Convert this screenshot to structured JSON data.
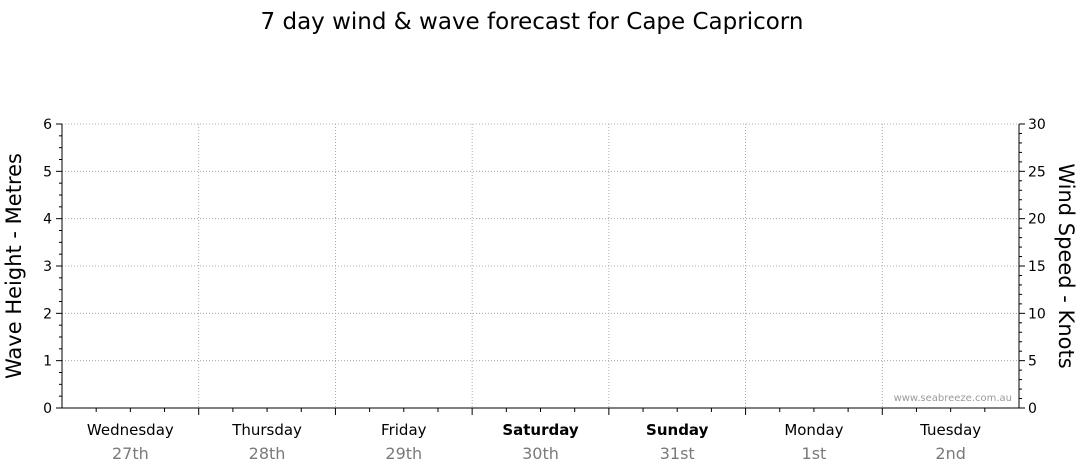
{
  "chart_data": {
    "type": "line",
    "title": "7 day wind & wave forecast for Cape Capricorn",
    "ylabel_left": "Wave Height - Metres",
    "ylabel_right": "Wind Speed - Knots",
    "ylim_left": [
      0,
      6
    ],
    "ylim_right": [
      0,
      30
    ],
    "yticks_left": [
      "0",
      "1",
      "2",
      "3",
      "4",
      "5",
      "6"
    ],
    "yticks_right": [
      "0",
      "5",
      "10",
      "15",
      "20",
      "25",
      "30"
    ],
    "days": [
      {
        "day": "Wednesday",
        "date": "27th",
        "bold": false
      },
      {
        "day": "Thursday",
        "date": "28th",
        "bold": false
      },
      {
        "day": "Friday",
        "date": "29th",
        "bold": false
      },
      {
        "day": "Saturday",
        "date": "30th",
        "bold": true
      },
      {
        "day": "Sunday",
        "date": "31st",
        "bold": true
      },
      {
        "day": "Monday",
        "date": "1st",
        "bold": false
      },
      {
        "day": "Tuesday",
        "date": "2nd",
        "bold": false
      }
    ],
    "grid": true,
    "series": [],
    "watermark": "www.seabreeze.com.au"
  }
}
